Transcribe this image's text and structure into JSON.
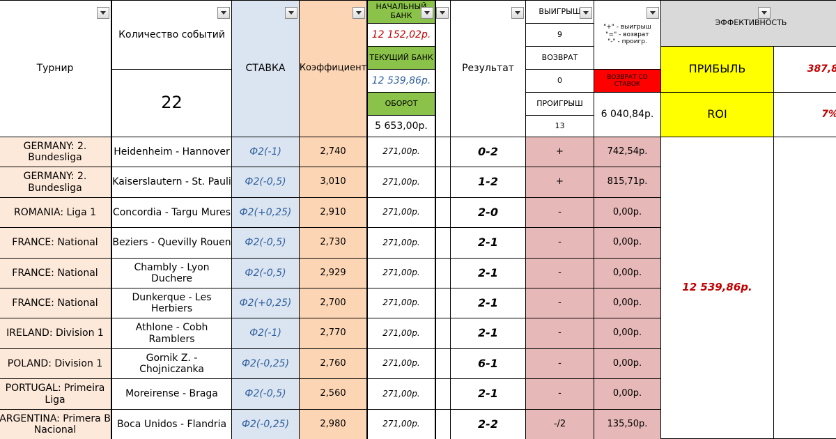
{
  "header": {
    "tournament": "Турнир",
    "events_count_label": "Количество событий",
    "events_count": "22",
    "stake": "СТАВКА",
    "coef": "Коэффициент",
    "start_bank_label": "НАЧАЛЬНЫЙ БАНК",
    "start_bank": "12 152,02р.",
    "current_bank_label": "ТЕКУЩИЙ БАНК",
    "current_bank": "12 539,86р.",
    "turnover_label": "ОБОРОТ",
    "turnover": "5 653,00р.",
    "result": "Результат",
    "wins_label": "ВЫИГРЫШ",
    "wins": "9",
    "returns_label": "ВОЗВРАТ",
    "returns": "0",
    "losses_label": "ПРОИГРЫШ",
    "losses": "13",
    "legend_win": "\"+\" - выигрыш",
    "legend_return": "\"=\" - возврат",
    "legend_loss": "\"-\" - проигр.",
    "return_from_bets_label": "ВОЗВРАТ СО СТАВОК",
    "return_from_bets": "6 040,84р.",
    "efficiency_label": "ЭФФЕКТИВНОСТЬ",
    "profit_label": "ПРИБЫЛЬ",
    "profit": "387,8",
    "roi_label": "ROI",
    "roi": "7%"
  },
  "rows": [
    {
      "tournament": "GERMANY: 2. Bundesliga",
      "match": "Heidenheim - Hannover",
      "bet": "Ф2(-1)",
      "coef": "2,740",
      "stake": "271,00р.",
      "score": "0-2",
      "outcome": "+",
      "ret": "742,54р."
    },
    {
      "tournament": "GERMANY: 2. Bundesliga",
      "match": "Kaiserslautern - St. Pauli",
      "bet": "Ф2(-0,5)",
      "coef": "3,010",
      "stake": "271,00р.",
      "score": "1-2",
      "outcome": "+",
      "ret": "815,71р."
    },
    {
      "tournament": "ROMANIA: Liga 1",
      "match": "Concordia - Targu Mures",
      "bet": "Ф2(+0,25)",
      "coef": "2,910",
      "stake": "271,00р.",
      "score": "2-0",
      "outcome": "-",
      "ret": "0,00р."
    },
    {
      "tournament": "FRANCE: National",
      "match": "Beziers - Quevilly Rouen",
      "bet": "Ф2(-0,5)",
      "coef": "2,730",
      "stake": "271,00р.",
      "score": "2-1",
      "outcome": "-",
      "ret": "0,00р."
    },
    {
      "tournament": "FRANCE: National",
      "match": "Chambly - Lyon Duchere",
      "bet": "Ф2(-0,5)",
      "coef": "2,929",
      "stake": "271,00р.",
      "score": "2-1",
      "outcome": "-",
      "ret": "0,00р."
    },
    {
      "tournament": "FRANCE: National",
      "match": "Dunkerque - Les Herbiers",
      "bet": "Ф2(+0,25)",
      "coef": "2,700",
      "stake": "271,00р.",
      "score": "2-1",
      "outcome": "-",
      "ret": "0,00р."
    },
    {
      "tournament": "IRELAND: Division 1",
      "match": "Athlone - Cobh Ramblers",
      "bet": "Ф2(-1)",
      "coef": "2,770",
      "stake": "271,00р.",
      "score": "2-1",
      "outcome": "-",
      "ret": "0,00р."
    },
    {
      "tournament": "POLAND: Division 1",
      "match": "Gornik Z. - Chojniczanka",
      "bet": "Ф2(-0,25)",
      "coef": "2,760",
      "stake": "271,00р.",
      "score": "6-1",
      "outcome": "-",
      "ret": "0,00р."
    },
    {
      "tournament": "PORTUGAL: Primeira Liga",
      "match": "Moreirense - Braga",
      "bet": "Ф2(-0,5)",
      "coef": "2,560",
      "stake": "271,00р.",
      "score": "2-1",
      "outcome": "-",
      "ret": "0,00р."
    },
    {
      "tournament": "ARGENTINA: Primera B Nacional",
      "match": "Boca Unidos - Flandria",
      "bet": "Ф2(-0,25)",
      "coef": "2,980",
      "stake": "271,00р.",
      "score": "2-2",
      "outcome": "-/2",
      "ret": "135,50р."
    }
  ],
  "summary_bank": "12 539,86р.",
  "icons": {
    "filter": "dropdown-arrow-icon"
  },
  "colors": {
    "green": "#8bc34a",
    "yellow": "#ffff00",
    "red": "#ff0000",
    "pink": "#e6b8b7",
    "peach": "#fde9d9",
    "orange": "#fcd5b4",
    "blue": "#dbe5f1"
  }
}
